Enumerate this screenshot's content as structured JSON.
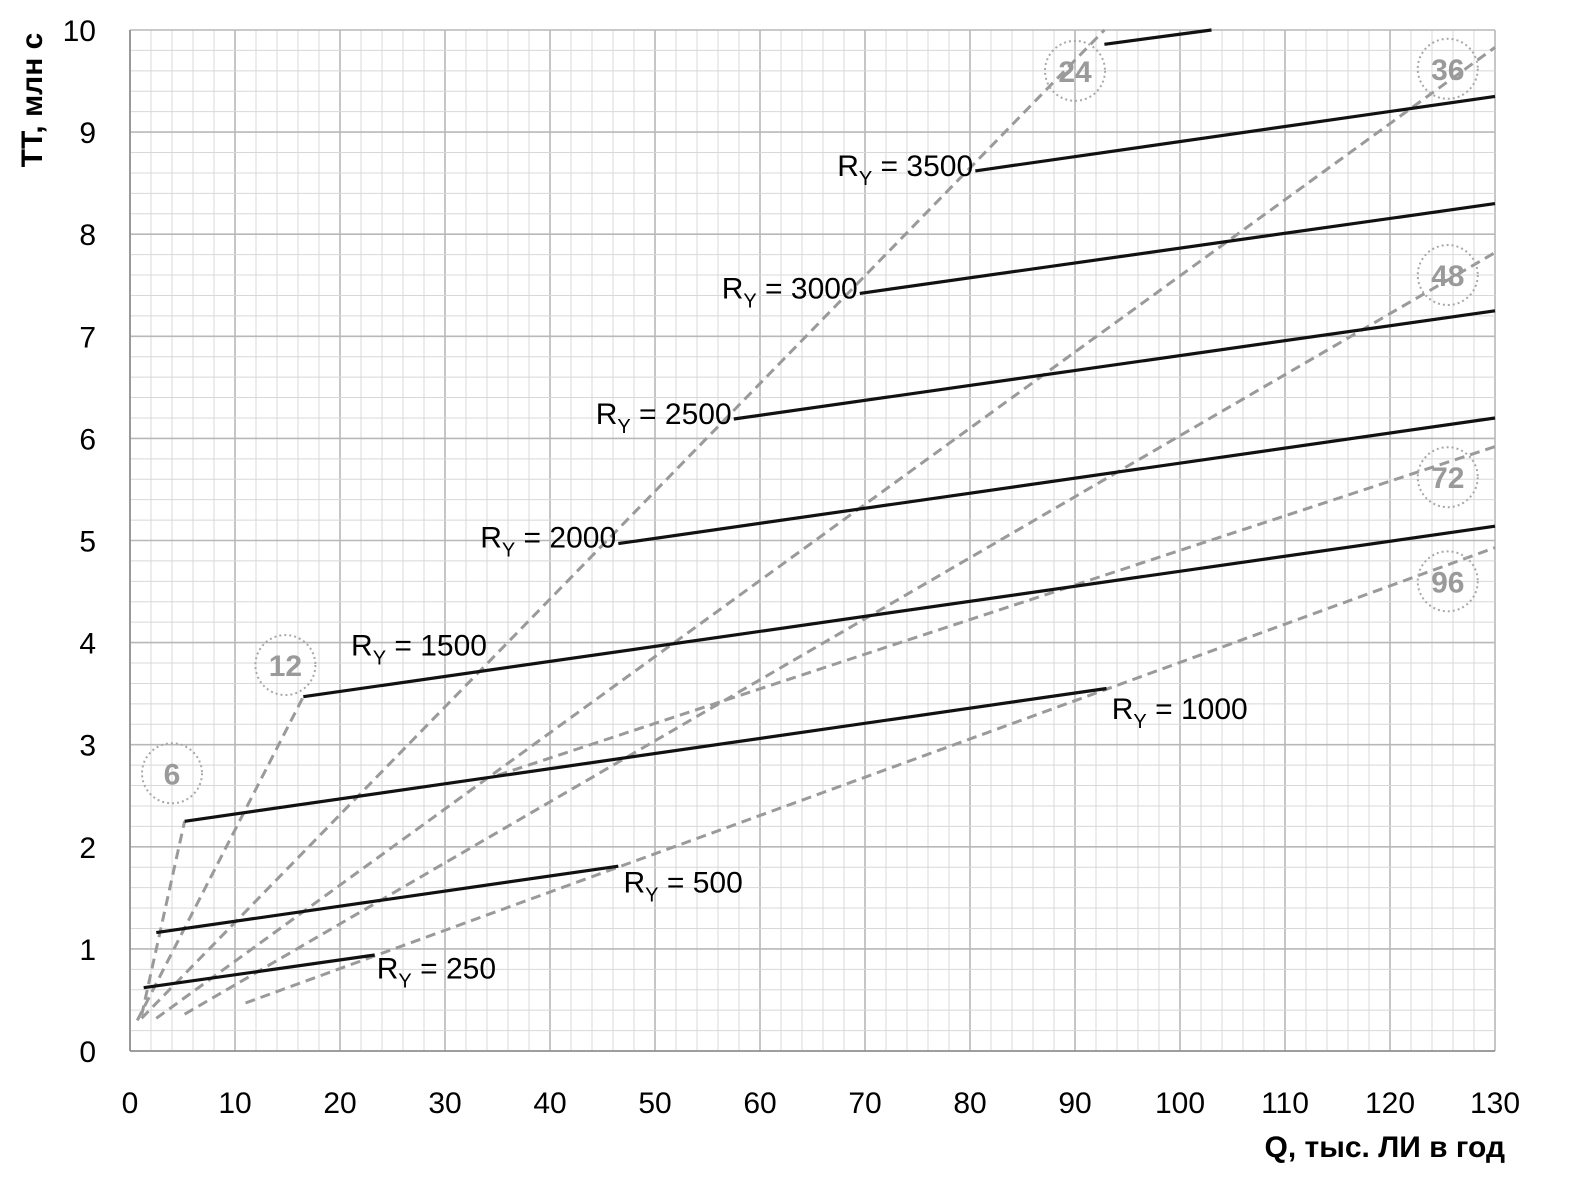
{
  "chart_data": {
    "type": "line",
    "title": "",
    "xlabel": "Q, тыс. ЛИ в год",
    "ylabel": "ТТ, млн с",
    "xlim": [
      0,
      130
    ],
    "ylim": [
      0,
      10
    ],
    "x_ticks": [
      0,
      10,
      20,
      30,
      40,
      50,
      60,
      70,
      80,
      90,
      100,
      110,
      120,
      130
    ],
    "y_ticks": [
      0,
      1,
      2,
      3,
      4,
      5,
      6,
      7,
      8,
      9,
      10
    ],
    "grid": true,
    "colors": {
      "solid": "#111111",
      "dashed": "#9a9a9a",
      "grid_major": "#b8b8b8",
      "grid_minor": "#d8d8d8"
    },
    "series": [
      {
        "name": "R",
        "sub": "Y",
        "value_text": " = 250",
        "style": "solid",
        "x": [
          1.3,
          23.3
        ],
        "y": [
          0.62,
          0.94
        ]
      },
      {
        "name": "R",
        "sub": "Y",
        "value_text": " = 500",
        "style": "solid",
        "x": [
          2.5,
          46.5
        ],
        "y": [
          1.16,
          1.81
        ]
      },
      {
        "name": "R",
        "sub": "Y",
        "value_text": " = 1000",
        "style": "solid",
        "x": [
          5.2,
          93
        ],
        "y": [
          2.25,
          3.55
        ]
      },
      {
        "name": "R",
        "sub": "Y",
        "value_text": " = 1500",
        "style": "solid",
        "x": [
          16.5,
          130
        ],
        "y": [
          3.47,
          5.14
        ]
      },
      {
        "name": "R",
        "sub": "Y",
        "value_text": " = 2000",
        "style": "solid",
        "x": [
          46.5,
          130
        ],
        "y": [
          4.97,
          6.2
        ]
      },
      {
        "name": "R",
        "sub": "Y",
        "value_text": " = 2500",
        "style": "solid",
        "x": [
          57.5,
          130
        ],
        "y": [
          6.19,
          7.25
        ]
      },
      {
        "name": "R",
        "sub": "Y",
        "value_text": " = 3000",
        "style": "solid",
        "x": [
          69.5,
          130
        ],
        "y": [
          7.42,
          8.3
        ]
      },
      {
        "name": "R",
        "sub": "Y",
        "value_text": " = 3500",
        "style": "solid",
        "x": [
          80.5,
          130
        ],
        "y": [
          8.62,
          9.35
        ]
      },
      {
        "name": "",
        "style": "solid",
        "x": [
          92.8,
          103
        ],
        "y": [
          9.86,
          10
        ]
      },
      {
        "name": "6",
        "style": "dashed",
        "x": [
          1.1,
          5.2
        ],
        "y": [
          0.35,
          2.25
        ]
      },
      {
        "name": "12",
        "style": "dashed",
        "x": [
          0.7,
          16.5
        ],
        "y": [
          0.3,
          3.47
        ]
      },
      {
        "name": "24",
        "style": "dashed",
        "x": [
          1.1,
          92.8
        ],
        "y": [
          0.32,
          10
        ]
      },
      {
        "name": "36",
        "style": "dashed",
        "x": [
          2.5,
          130
        ],
        "y": [
          0.32,
          9.83
        ]
      },
      {
        "name": "48",
        "style": "dashed",
        "x": [
          5.2,
          130
        ],
        "y": [
          0.36,
          7.82
        ]
      },
      {
        "name": "72",
        "style": "dashed",
        "x": [
          35,
          130
        ],
        "y": [
          2.7,
          5.92
        ]
      },
      {
        "name": "96",
        "style": "dashed",
        "x": [
          11,
          130
        ],
        "y": [
          0.47,
          4.93
        ]
      }
    ],
    "annotations": [
      {
        "series": 0,
        "x": 23.5,
        "y": 0.82,
        "anchor": "start"
      },
      {
        "series": 1,
        "x": 47,
        "y": 1.66,
        "anchor": "start"
      },
      {
        "series": 2,
        "x": 93.5,
        "y": 3.36,
        "anchor": "start"
      },
      {
        "series": 3,
        "x": 34,
        "y": 3.98,
        "anchor": "end"
      },
      {
        "series": 4,
        "x": 46.3,
        "y": 5.04,
        "anchor": "end"
      },
      {
        "series": 5,
        "x": 57.3,
        "y": 6.25,
        "anchor": "end"
      },
      {
        "series": 6,
        "x": 69.3,
        "y": 7.48,
        "anchor": "end"
      },
      {
        "series": 7,
        "x": 80.3,
        "y": 8.68,
        "anchor": "end"
      }
    ],
    "circle_labels": [
      {
        "text": "6",
        "x": 4,
        "y": 2.72
      },
      {
        "text": "12",
        "x": 14.8,
        "y": 3.78
      },
      {
        "text": "24",
        "x": 90,
        "y": 9.6
      },
      {
        "text": "36",
        "x": 125.5,
        "y": 9.62
      },
      {
        "text": "48",
        "x": 125.5,
        "y": 7.6
      },
      {
        "text": "72",
        "x": 125.5,
        "y": 5.62
      },
      {
        "text": "96",
        "x": 125.5,
        "y": 4.6
      }
    ]
  }
}
